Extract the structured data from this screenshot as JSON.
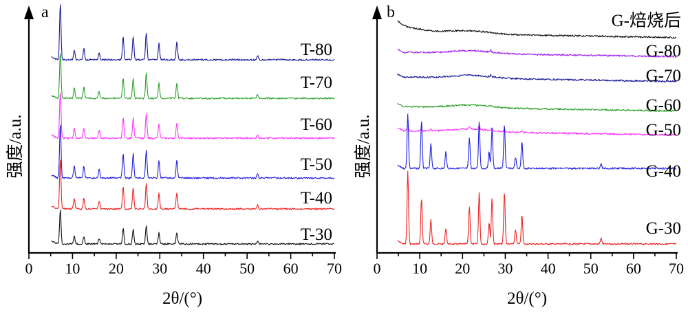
{
  "chart_data": [
    {
      "panel": "a",
      "type": "line",
      "xlabel": "2θ/(°)",
      "ylabel": "强度/a.u.",
      "xlim": [
        0,
        70
      ],
      "xticks": [
        0,
        10,
        20,
        30,
        40,
        50,
        60,
        70
      ],
      "grid": false,
      "legend": "inline labels at right end of each trace",
      "series": [
        {
          "name": "T-80",
          "color": "#1a1a9a",
          "baseline": 0.93,
          "peaks": [
            [
              7.2,
              1.0
            ],
            [
              10.4,
              0.18
            ],
            [
              12.6,
              0.2
            ],
            [
              16.1,
              0.13
            ],
            [
              21.6,
              0.42
            ],
            [
              23.9,
              0.42
            ],
            [
              26.9,
              0.48
            ],
            [
              29.8,
              0.3
            ],
            [
              33.9,
              0.33
            ],
            [
              52.4,
              0.07
            ]
          ]
        },
        {
          "name": "T-70",
          "color": "#2ba02b",
          "baseline": 0.93,
          "peaks": [
            [
              7.2,
              1.0
            ],
            [
              10.4,
              0.22
            ],
            [
              12.6,
              0.24
            ],
            [
              16.1,
              0.16
            ],
            [
              21.6,
              0.44
            ],
            [
              23.9,
              0.44
            ],
            [
              26.9,
              0.55
            ],
            [
              29.8,
              0.33
            ],
            [
              33.9,
              0.34
            ],
            [
              52.4,
              0.08
            ]
          ]
        },
        {
          "name": "T-60",
          "color": "#ff33ff",
          "baseline": 0.93,
          "peaks": [
            [
              7.2,
              1.0
            ],
            [
              10.4,
              0.22
            ],
            [
              12.6,
              0.22
            ],
            [
              16.1,
              0.16
            ],
            [
              21.6,
              0.44
            ],
            [
              23.9,
              0.44
            ],
            [
              26.9,
              0.52
            ],
            [
              29.8,
              0.32
            ],
            [
              33.9,
              0.33
            ],
            [
              52.4,
              0.08
            ]
          ]
        },
        {
          "name": "T-50",
          "color": "#1f1fe0",
          "baseline": 0.93,
          "peaks": [
            [
              7.2,
              1.0
            ],
            [
              10.4,
              0.22
            ],
            [
              12.6,
              0.22
            ],
            [
              16.1,
              0.16
            ],
            [
              21.6,
              0.44
            ],
            [
              23.9,
              0.44
            ],
            [
              26.9,
              0.52
            ],
            [
              29.8,
              0.32
            ],
            [
              33.9,
              0.33
            ],
            [
              52.4,
              0.08
            ]
          ]
        },
        {
          "name": "T-40",
          "color": "#ee2222",
          "baseline": 0.93,
          "peaks": [
            [
              7.2,
              1.0
            ],
            [
              10.4,
              0.22
            ],
            [
              12.6,
              0.22
            ],
            [
              16.1,
              0.16
            ],
            [
              21.6,
              0.44
            ],
            [
              23.9,
              0.44
            ],
            [
              26.9,
              0.52
            ],
            [
              29.8,
              0.32
            ],
            [
              33.9,
              0.33
            ],
            [
              52.4,
              0.08
            ]
          ]
        },
        {
          "name": "T-30",
          "color": "#111111",
          "baseline": 0.93,
          "peaks": [
            [
              7.2,
              1.0
            ],
            [
              10.4,
              0.22
            ],
            [
              12.6,
              0.22
            ],
            [
              16.1,
              0.16
            ],
            [
              21.6,
              0.44
            ],
            [
              23.9,
              0.44
            ],
            [
              26.9,
              0.52
            ],
            [
              29.8,
              0.32
            ],
            [
              33.9,
              0.33
            ],
            [
              52.4,
              0.08
            ]
          ]
        }
      ]
    },
    {
      "panel": "b",
      "type": "line",
      "xlabel": "2θ/(°)",
      "ylabel": "强度/a.u.",
      "xlim": [
        0,
        70
      ],
      "xticks": [
        0,
        10,
        20,
        30,
        40,
        50,
        60,
        70
      ],
      "grid": false,
      "legend": "inline labels at right end of each trace",
      "series": [
        {
          "name": "G-焙烧后",
          "color": "#111111",
          "baseline": 0.9,
          "peaks": [
            [
              26.6,
              0.06
            ]
          ]
        },
        {
          "name": "G-80",
          "color": "#a020f0",
          "baseline": 0.93,
          "peaks": [
            [
              26.6,
              0.1
            ]
          ]
        },
        {
          "name": "G-70",
          "color": "#1a1a9a",
          "baseline": 0.93,
          "peaks": [
            [
              26.6,
              0.1
            ]
          ]
        },
        {
          "name": "G-60",
          "color": "#2ba02b",
          "baseline": 0.93,
          "peaks": [
            [
              26.6,
              0.07
            ]
          ]
        },
        {
          "name": "G-50",
          "color": "#ff33ff",
          "baseline": 0.93,
          "peaks": [
            [
              7.2,
              0.27
            ],
            [
              10.4,
              0.09
            ],
            [
              12.6,
              0.1
            ],
            [
              21.6,
              0.14
            ],
            [
              23.9,
              0.17
            ],
            [
              26.9,
              0.15
            ],
            [
              29.8,
              0.12
            ],
            [
              33.9,
              0.1
            ]
          ]
        },
        {
          "name": "G-40",
          "color": "#1f1fe0",
          "baseline": 0.93,
          "peaks": [
            [
              7.2,
              1.0
            ],
            [
              10.4,
              0.86
            ],
            [
              12.6,
              0.45
            ],
            [
              16.1,
              0.3
            ],
            [
              21.6,
              0.55
            ],
            [
              23.9,
              0.86
            ],
            [
              26.2,
              0.3
            ],
            [
              26.9,
              0.72
            ],
            [
              29.8,
              0.8
            ],
            [
              32.4,
              0.2
            ],
            [
              33.9,
              0.5
            ],
            [
              52.4,
              0.08
            ]
          ]
        },
        {
          "name": "G-30",
          "color": "#ee2222",
          "baseline": 0.93,
          "peaks": [
            [
              7.2,
              1.0
            ],
            [
              10.4,
              0.63
            ],
            [
              12.6,
              0.34
            ],
            [
              16.1,
              0.22
            ],
            [
              21.6,
              0.52
            ],
            [
              23.9,
              0.72
            ],
            [
              26.2,
              0.3
            ],
            [
              26.9,
              0.63
            ],
            [
              29.8,
              0.72
            ],
            [
              32.4,
              0.2
            ],
            [
              33.9,
              0.4
            ],
            [
              52.4,
              0.08
            ]
          ]
        }
      ]
    }
  ]
}
